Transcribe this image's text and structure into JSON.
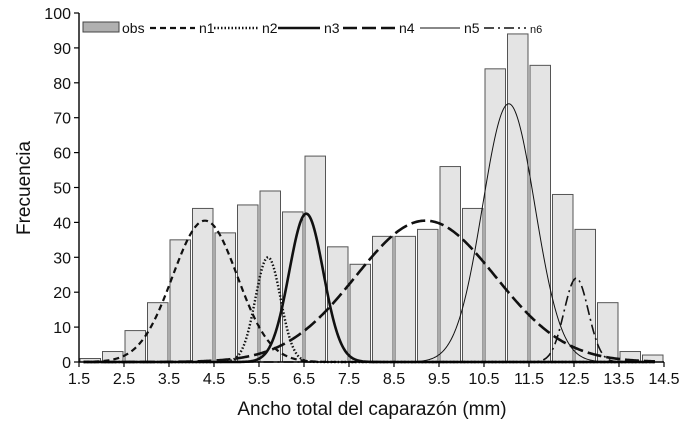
{
  "chart_data": {
    "type": "bar",
    "xlabel": "Ancho total del caparazón (mm)",
    "ylabel": "Frecuencia",
    "xlim": [
      1.5,
      14.5
    ],
    "ylim": [
      0,
      100
    ],
    "x_ticks": [
      "1.5",
      "2.5",
      "3.5",
      "4.5",
      "5.5",
      "6.5",
      "7.5",
      "8.5",
      "9.5",
      "10.5",
      "11.5",
      "12.5",
      "13.5",
      "14.5"
    ],
    "x_tick_values": [
      1.5,
      2.5,
      3.5,
      4.5,
      5.5,
      6.5,
      7.5,
      8.5,
      9.5,
      10.5,
      11.5,
      12.5,
      13.5,
      14.5
    ],
    "x_tick_labels": [
      "1.5",
      "2.5",
      "3.5",
      "4.5",
      "5.5",
      "6.5",
      "7.5",
      "8.5",
      "9.5",
      "10.5",
      "11.5",
      "12.5",
      "13.5",
      "14.5"
    ],
    "y_tick_values": [
      0,
      10,
      20,
      30,
      40,
      50,
      60,
      70,
      80,
      90,
      100
    ],
    "y_tick_labels": [
      "0",
      "10",
      "20",
      "30",
      "40",
      "50",
      "60",
      "70",
      "80",
      "90",
      "100"
    ],
    "bin_width": 0.5,
    "bars": {
      "name": "obs",
      "x": [
        1.75,
        2.25,
        2.75,
        3.25,
        3.75,
        4.25,
        4.75,
        5.25,
        5.75,
        6.25,
        6.75,
        7.25,
        7.75,
        8.25,
        8.75,
        9.25,
        9.75,
        10.25,
        10.75,
        11.25,
        11.75,
        12.25,
        12.75,
        13.25,
        13.75,
        14.25
      ],
      "values": [
        1,
        3,
        9,
        17,
        35,
        44,
        37,
        45,
        49,
        43,
        59,
        33,
        28,
        36,
        36,
        38,
        56,
        44,
        84,
        94,
        85,
        48,
        38,
        17,
        3,
        2
      ]
    },
    "curves": [
      {
        "name": "n1",
        "mean": 4.3,
        "sd": 0.72,
        "peak": 40.5,
        "style": "dashed"
      },
      {
        "name": "n2",
        "mean": 5.7,
        "sd": 0.28,
        "peak": 30,
        "style": "dotted"
      },
      {
        "name": "n3",
        "mean": 6.55,
        "sd": 0.38,
        "peak": 42.5,
        "style": "solid-thick"
      },
      {
        "name": "n4",
        "mean": 9.2,
        "sd": 1.55,
        "peak": 40.5,
        "style": "long-dash"
      },
      {
        "name": "n5",
        "mean": 11.05,
        "sd": 0.58,
        "peak": 74,
        "style": "solid-thin"
      },
      {
        "name": "n6",
        "mean": 12.55,
        "sd": 0.27,
        "peak": 24,
        "style": "dash-dot"
      }
    ],
    "legend": {
      "position": "top",
      "entries": [
        "obs",
        "n1",
        "n2",
        "n3",
        "n4",
        "n5",
        "n6"
      ]
    },
    "colors": {
      "bar_fill": "#e4e4e4",
      "bar_stroke": "#555555",
      "legend_swatch": "#b0b0b0",
      "line": "#111111"
    }
  }
}
